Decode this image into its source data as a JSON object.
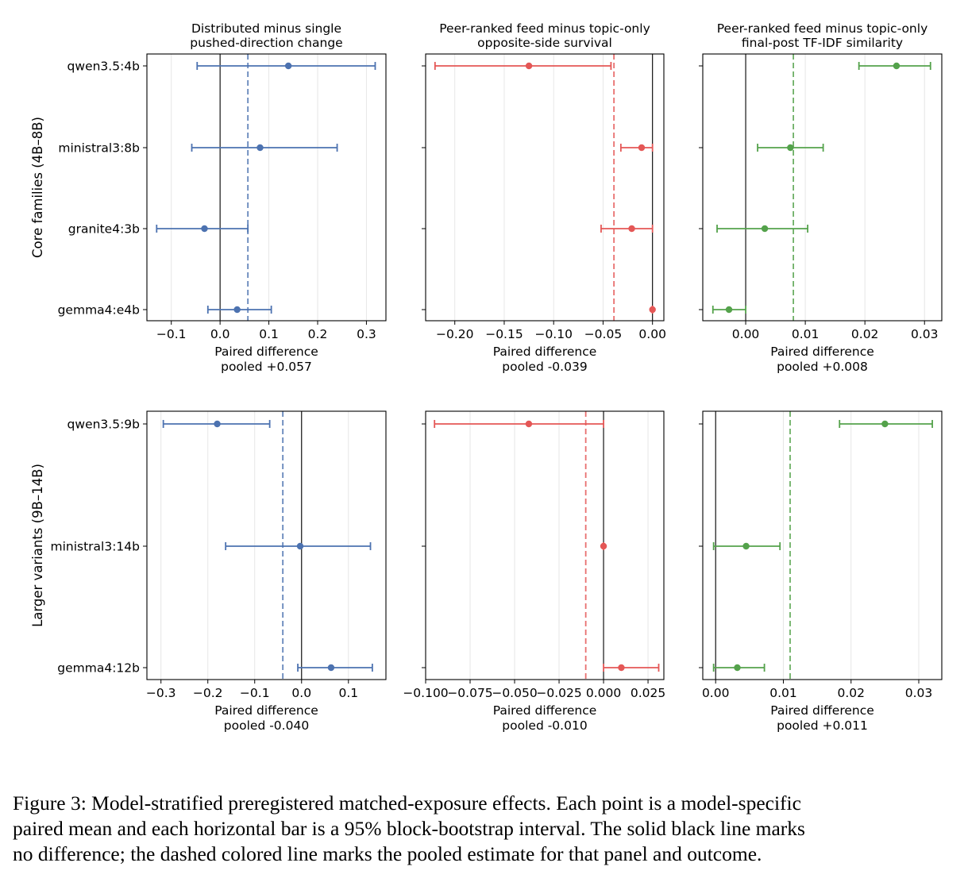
{
  "colors": {
    "blue": "#4c72b0",
    "red": "#e45756",
    "green": "#54a24b",
    "grid": "#e6e6e6",
    "axis": "#000000"
  },
  "rows": [
    {
      "ylabel": "Core families (4B–8B)",
      "models": [
        "qwen3.5:4b",
        "ministral3:8b",
        "granite4:3b",
        "gemma4:e4b"
      ]
    },
    {
      "ylabel": "Larger variants (9B–14B)",
      "models": [
        "qwen3.5:9b",
        "ministral3:14b",
        "gemma4:12b"
      ]
    }
  ],
  "columns": [
    {
      "title": [
        "Distributed minus single",
        "pushed-direction change"
      ],
      "color": "blue"
    },
    {
      "title": [
        "Peer-ranked feed minus topic-only",
        "opposite-side survival"
      ],
      "color": "red"
    },
    {
      "title": [
        "Peer-ranked feed minus topic-only",
        "final-post TF-IDF similarity"
      ],
      "color": "green"
    }
  ],
  "chart_data": [
    {
      "type": "scatter",
      "row": 0,
      "col": 0,
      "xlabel": "Paired difference",
      "pooled_label": "pooled +0.057",
      "pooled": 0.057,
      "xlim": [
        -0.15,
        0.34
      ],
      "ticks": [
        -0.1,
        0.0,
        0.1,
        0.2,
        0.3
      ],
      "tick_labels": [
        "−0.1",
        "0.0",
        "0.1",
        "0.2",
        "0.3"
      ],
      "points": [
        {
          "model": "qwen3.5:4b",
          "mean": 0.14,
          "lo": -0.047,
          "hi": 0.318
        },
        {
          "model": "ministral3:8b",
          "mean": 0.082,
          "lo": -0.058,
          "hi": 0.24
        },
        {
          "model": "granite4:3b",
          "mean": -0.032,
          "lo": -0.13,
          "hi": 0.057
        },
        {
          "model": "gemma4:e4b",
          "mean": 0.035,
          "lo": -0.025,
          "hi": 0.105
        }
      ]
    },
    {
      "type": "scatter",
      "row": 0,
      "col": 1,
      "xlabel": "Paired difference",
      "pooled_label": "pooled -0.039",
      "pooled": -0.039,
      "xlim": [
        -0.2295,
        0.0115
      ],
      "ticks": [
        -0.2,
        -0.15,
        -0.1,
        -0.05,
        0.0
      ],
      "tick_labels": [
        "−0.20",
        "−0.15",
        "−0.10",
        "−0.05",
        "0.00"
      ],
      "points": [
        {
          "model": "qwen3.5:4b",
          "mean": -0.125,
          "lo": -0.22,
          "hi": -0.042
        },
        {
          "model": "ministral3:8b",
          "mean": -0.011,
          "lo": -0.032,
          "hi": 0.0
        },
        {
          "model": "granite4:3b",
          "mean": -0.021,
          "lo": -0.052,
          "hi": 0.0
        },
        {
          "model": "gemma4:e4b",
          "mean": 0.0,
          "lo": 0.0,
          "hi": 0.0
        }
      ]
    },
    {
      "type": "scatter",
      "row": 0,
      "col": 2,
      "xlabel": "Paired difference",
      "pooled_label": "pooled +0.008",
      "pooled": 0.008,
      "xlim": [
        -0.0072,
        0.0329
      ],
      "ticks": [
        0.0,
        0.01,
        0.02,
        0.03
      ],
      "tick_labels": [
        "0.00",
        "0.01",
        "0.02",
        "0.03"
      ],
      "points": [
        {
          "model": "qwen3.5:4b",
          "mean": 0.0253,
          "lo": 0.019,
          "hi": 0.031
        },
        {
          "model": "ministral3:8b",
          "mean": 0.0075,
          "lo": 0.002,
          "hi": 0.013
        },
        {
          "model": "granite4:3b",
          "mean": 0.0032,
          "lo": -0.0048,
          "hi": 0.0104
        },
        {
          "model": "gemma4:e4b",
          "mean": -0.0028,
          "lo": -0.0055,
          "hi": 0.0
        }
      ]
    },
    {
      "type": "scatter",
      "row": 1,
      "col": 0,
      "xlabel": "Paired difference",
      "pooled_label": "pooled -0.040",
      "pooled": -0.04,
      "xlim": [
        -0.33,
        0.18
      ],
      "ticks": [
        -0.3,
        -0.2,
        -0.1,
        0.0,
        0.1
      ],
      "tick_labels": [
        "−0.3",
        "−0.2",
        "−0.1",
        "0.0",
        "0.1"
      ],
      "points": [
        {
          "model": "qwen3.5:9b",
          "mean": -0.18,
          "lo": -0.295,
          "hi": -0.068
        },
        {
          "model": "ministral3:14b",
          "mean": -0.003,
          "lo": -0.162,
          "hi": 0.147
        },
        {
          "model": "gemma4:12b",
          "mean": 0.063,
          "lo": -0.008,
          "hi": 0.151
        }
      ]
    },
    {
      "type": "scatter",
      "row": 1,
      "col": 1,
      "xlabel": "Paired difference",
      "pooled_label": "pooled -0.010",
      "pooled": -0.01,
      "xlim": [
        -0.1,
        0.0339
      ],
      "ticks": [
        -0.1,
        -0.075,
        -0.05,
        -0.025,
        0.0,
        0.025
      ],
      "tick_labels": [
        "−0.100",
        "−0.075",
        "−0.050",
        "−0.025",
        "0.000",
        "0.025"
      ],
      "points": [
        {
          "model": "qwen3.5:9b",
          "mean": -0.042,
          "lo": -0.095,
          "hi": 0.0
        },
        {
          "model": "ministral3:14b",
          "mean": 0.0,
          "lo": 0.0,
          "hi": 0.0
        },
        {
          "model": "gemma4:12b",
          "mean": 0.01,
          "lo": 0.0,
          "hi": 0.031
        }
      ]
    },
    {
      "type": "scatter",
      "row": 1,
      "col": 2,
      "xlabel": "Paired difference",
      "pooled_label": "pooled +0.011",
      "pooled": 0.011,
      "xlim": [
        -0.0019,
        0.0334
      ],
      "ticks": [
        0.0,
        0.01,
        0.02,
        0.03
      ],
      "tick_labels": [
        "0.00",
        "0.01",
        "0.02",
        "0.03"
      ],
      "points": [
        {
          "model": "qwen3.5:9b",
          "mean": 0.025,
          "lo": 0.0183,
          "hi": 0.032
        },
        {
          "model": "ministral3:14b",
          "mean": 0.0045,
          "lo": -0.0003,
          "hi": 0.0095
        },
        {
          "model": "gemma4:12b",
          "mean": 0.0032,
          "lo": -0.0003,
          "hi": 0.0072
        }
      ]
    }
  ],
  "caption": [
    "Figure 3: Model-stratified preregistered matched-exposure effects. Each point is a model-specific",
    "paired mean and each horizontal bar is a 95% block-bootstrap interval. The solid black line marks",
    "no difference; the dashed colored line marks the pooled estimate for that panel and outcome."
  ]
}
